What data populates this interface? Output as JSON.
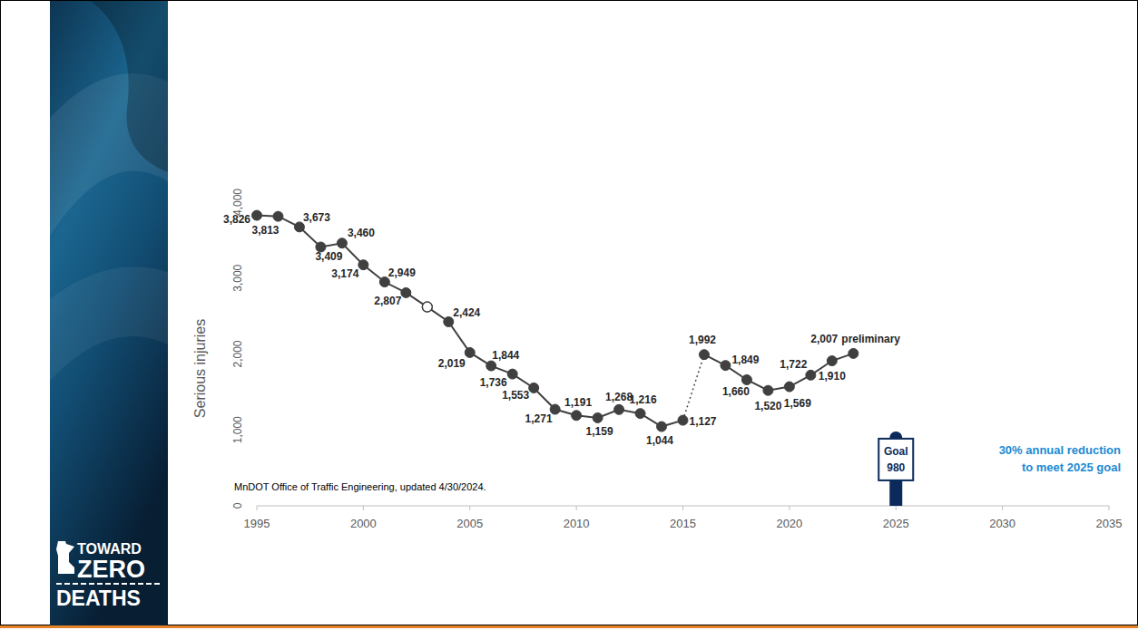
{
  "chart_data": {
    "type": "line",
    "y_label": "Serious injuries",
    "x": [
      1995,
      1996,
      1997,
      1998,
      1999,
      2000,
      2001,
      2002,
      2003,
      2004,
      2005,
      2006,
      2007,
      2008,
      2009,
      2010,
      2011,
      2012,
      2013,
      2014,
      2015,
      2016,
      2017,
      2018,
      2019,
      2020,
      2021,
      2022,
      2023
    ],
    "xlim": [
      1995,
      2035
    ],
    "xticks": [
      1995,
      2000,
      2005,
      2010,
      2015,
      2020,
      2025,
      2030,
      2035
    ],
    "ylim": [
      0,
      4000
    ],
    "yticks": [
      0,
      {
        "value": 1000,
        "label": "1,000"
      },
      {
        "value": 2000,
        "label": "2,000"
      },
      {
        "value": 3000,
        "label": "3,000"
      },
      {
        "value": 4000,
        "label": "4,000"
      }
    ],
    "grid": false,
    "data_labels": true,
    "series": [
      {
        "color": "#404040",
        "marker": "circle",
        "line_style": "solid",
        "values": [
          3826,
          3813,
          3673,
          3409,
          3460,
          3174,
          2949,
          2807,
          2620,
          2424,
          2019,
          1844,
          1736,
          1553,
          1271,
          1191,
          1159,
          1268,
          1216,
          1044,
          1127,
          null,
          null,
          null,
          null,
          null,
          null,
          null,
          null
        ],
        "value_labels": [
          "3,826",
          "3,813",
          "3,673",
          "3,409",
          "3,460",
          "3,174",
          "2,949",
          "2,807",
          null,
          "2,424",
          "2,019",
          "1,844",
          "1,736",
          "1,553",
          "1,271",
          "1,191",
          "1,159",
          "1,268",
          "1,216",
          "1,044",
          "1,127",
          null,
          null,
          null,
          null,
          null,
          null,
          null,
          null
        ]
      },
      {
        "color": "#404040",
        "marker": "circle",
        "line_style": "solid",
        "values": [
          null,
          null,
          null,
          null,
          null,
          null,
          null,
          null,
          null,
          null,
          null,
          null,
          null,
          null,
          null,
          null,
          null,
          null,
          null,
          null,
          null,
          1992,
          1849,
          1660,
          1520,
          1569,
          1722,
          1910,
          2007
        ],
        "value_labels": [
          null,
          null,
          null,
          null,
          null,
          null,
          null,
          null,
          null,
          null,
          null,
          null,
          null,
          null,
          null,
          null,
          null,
          null,
          null,
          null,
          null,
          "1,992",
          "1,849",
          "1,660",
          "1,520",
          "1,569",
          "1,722",
          "1,910",
          "2,007"
        ]
      },
      {
        "color": "#404040",
        "marker": "open_circle",
        "line_style": "none",
        "values": [
          null,
          null,
          null,
          null,
          null,
          null,
          null,
          null,
          2620,
          null,
          null,
          null,
          null,
          null,
          null,
          null,
          null,
          null,
          null,
          null,
          null,
          null,
          null,
          null,
          null,
          null,
          null,
          null,
          null
        ]
      }
    ],
    "annotations": [
      {
        "text": "preliminary",
        "x": 2023,
        "y": 2007
      }
    ],
    "goal": {
      "x": 2025,
      "value": 980,
      "label": "Goal",
      "value_label": "980",
      "note": "30% annual reduction to meet 2025 goal"
    },
    "source": "MnDOT Office of Traffic Engineering, updated 4/30/2024."
  },
  "logo": [
    "TOWARD",
    "ZERO",
    "DEATHS"
  ]
}
